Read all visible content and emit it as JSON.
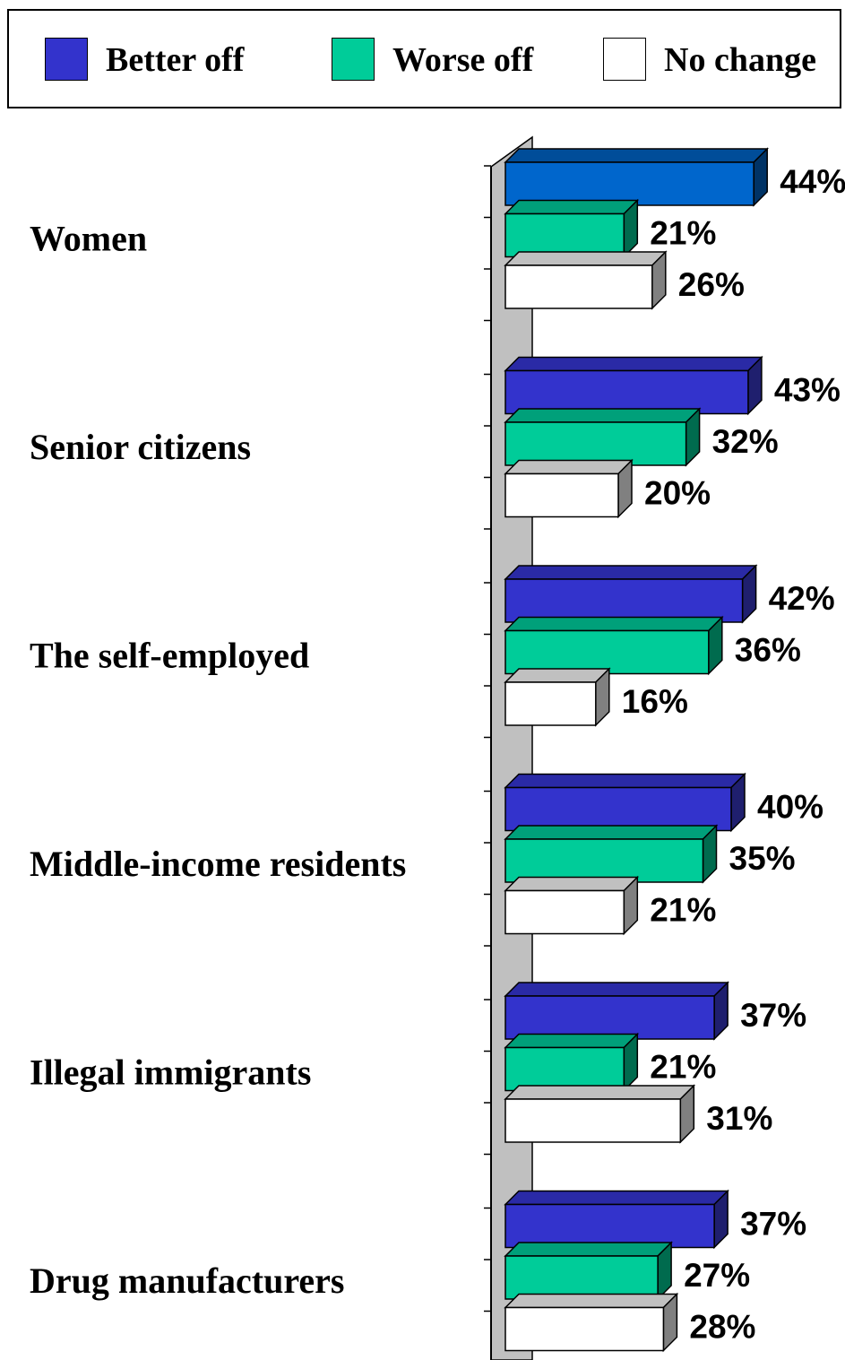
{
  "legend": {
    "items": [
      {
        "label": "Better off",
        "color": "#3333cc"
      },
      {
        "label": "Worse off",
        "color": "#00cc99"
      },
      {
        "label": "No change",
        "color": "#ffffff"
      }
    ]
  },
  "chart_data": {
    "type": "bar",
    "orientation": "horizontal",
    "style": "3d",
    "title": "",
    "xlabel": "",
    "ylabel": "",
    "categories": [
      "Women",
      "Senior citizens",
      "The self-employed",
      "Middle-income residents",
      "Illegal immigrants",
      "Drug manufacturers"
    ],
    "series": [
      {
        "name": "Better off",
        "values": [
          44,
          43,
          42,
          40,
          37,
          37
        ],
        "labels": [
          "44%",
          "43%",
          "42%",
          "40%",
          "37%",
          "37%"
        ],
        "color": "#3333cc",
        "side_color": "#1f1f6e",
        "top_color": "#2a2aa6"
      },
      {
        "name": "Worse off",
        "values": [
          21,
          32,
          36,
          35,
          21,
          27
        ],
        "labels": [
          "21%",
          "32%",
          "36%",
          "35%",
          "21%",
          "27%"
        ],
        "color": "#00cc99",
        "side_color": "#006b4e",
        "top_color": "#00a07a"
      },
      {
        "name": "No change",
        "values": [
          26,
          20,
          16,
          21,
          31,
          28
        ],
        "labels": [
          "26%",
          "20%",
          "16%",
          "21%",
          "31%",
          "28%"
        ],
        "color": "#ffffff",
        "side_color": "#808080",
        "top_color": "#c0c0c0"
      }
    ],
    "highlight": {
      "category": "Women",
      "series": "Better off",
      "color": "#0066cc",
      "side_color": "#003366",
      "top_color": "#004d99"
    },
    "xlim": [
      0,
      44
    ],
    "grid": false,
    "legend_position": "top"
  }
}
